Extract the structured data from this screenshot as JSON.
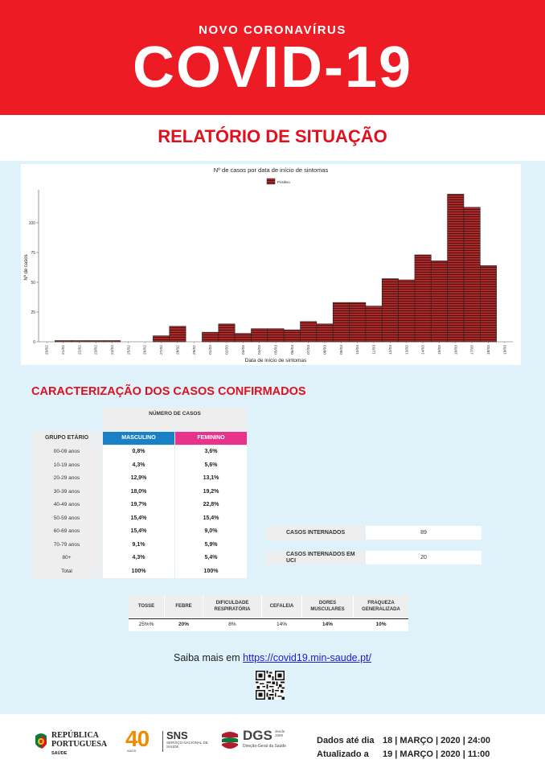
{
  "header": {
    "subtitle": "NOVO CORONAVÍRUS",
    "title": "COVID-19",
    "report_title": "RELATÓRIO DE SITUAÇÃO"
  },
  "chart_data": {
    "type": "bar",
    "title": "Nº de casos por data de início de sintomas",
    "xlabel": "Data de início de sintomas",
    "ylabel": "Nº de casos",
    "legend": [
      "Positivo"
    ],
    "legend_position": "top-center",
    "ylim": [
      0,
      125
    ],
    "yticks": [
      "0",
      "25",
      "50",
      "75",
      "100"
    ],
    "categories": [
      "20/02",
      "21/02",
      "22/02",
      "23/02",
      "24/02",
      "25/02",
      "26/02",
      "27/02",
      "28/02",
      "29/02",
      "01/03",
      "02/03",
      "03/03",
      "04/03",
      "05/03",
      "06/03",
      "07/03",
      "08/03",
      "09/03",
      "10/03",
      "11/03",
      "12/03",
      "13/03",
      "14/03",
      "15/03",
      "16/03",
      "17/03",
      "18/03",
      "19/03"
    ],
    "values": [
      0,
      1,
      1,
      1,
      1,
      0,
      0,
      5,
      13,
      0,
      8,
      15,
      7,
      11,
      11,
      10,
      17,
      15,
      33,
      33,
      30,
      53,
      52,
      73,
      68,
      124,
      113,
      64,
      0
    ],
    "bar_color": "#a52a2a"
  },
  "cases_section": {
    "title": "CARACTERIZAÇÃO DOS CASOS CONFIRMADOS",
    "number_header": "NÚMERO DE CASOS",
    "age_header": "GRUPO ETÁRIO",
    "male_header": "MASCULINO",
    "female_header": "FEMININO",
    "male_color": "#1a7fc4",
    "female_color": "#e9338a",
    "rows": [
      {
        "group": "00-09 anos",
        "male": "0,8%",
        "female": "3,6%"
      },
      {
        "group": "10-19 anos",
        "male": "4,3%",
        "female": "5,6%"
      },
      {
        "group": "20-29 anos",
        "male": "12,9%",
        "female": "13,1%"
      },
      {
        "group": "30-39 anos",
        "male": "18,0%",
        "female": "19,2%"
      },
      {
        "group": "40-49 anos",
        "male": "19,7%",
        "female": "22,8%"
      },
      {
        "group": "50-59 anos",
        "male": "15,4%",
        "female": "15,4%"
      },
      {
        "group": "60-69 anos",
        "male": "15,4%",
        "female": "9,0%"
      },
      {
        "group": "70-79 anos",
        "male": "9,1%",
        "female": "5,9%"
      },
      {
        "group": "80+",
        "male": "4,3%",
        "female": "5,4%"
      },
      {
        "group": "Total",
        "male": "100%",
        "female": "100%"
      }
    ]
  },
  "hospital": {
    "admitted_label": "CASOS INTERNADOS",
    "admitted_value": "89",
    "icu_label": "CASOS INTERNADOS EM UCI",
    "icu_value": "20"
  },
  "symptoms": [
    {
      "name": "TOSSE",
      "value": "25%%"
    },
    {
      "name": "FEBRE",
      "value": "20%"
    },
    {
      "name": "DIFICULDADE RESPIRATÓRIA",
      "value": "8%"
    },
    {
      "name": "CEFALEIA",
      "value": "14%"
    },
    {
      "name": "DORES MUSCULARES",
      "value": "14%"
    },
    {
      "name": "FRAQUEZA GENERALIZADA",
      "value": "10%"
    }
  ],
  "more_info": {
    "text": "Saiba mais em",
    "link": "https://covid19.min-saude.pt/"
  },
  "footer": {
    "republica_line1": "REPÚBLICA",
    "republica_line2": "PORTUGUESA",
    "republica_line3": "SAÚDE",
    "forty": "40",
    "anos": "ANOS",
    "sns": "SNS",
    "sns_sub": "SERVIÇO NACIONAL DE SAÚDE",
    "dgs": "DGS",
    "dgs_since": "desde 1899",
    "dgs_full": "Direção-Geral da Saúde",
    "data_label": "Dados até dia",
    "data_value": "18 | MARÇO | 2020 | 24:00",
    "updated_label": "Atualizado a",
    "updated_value": "19 | MARÇO | 2020 | 11:00"
  }
}
